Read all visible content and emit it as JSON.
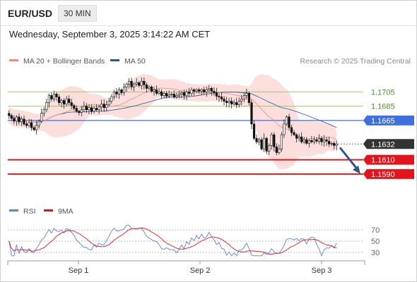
{
  "header": {
    "symbol": "EUR/USD",
    "timeframe": "30 MIN",
    "datetime": "Wednesday, September 3, 2025 3:14:22 AM CET"
  },
  "chart_data": {
    "type": "candlestick",
    "legend": [
      {
        "name": "MA 20 + Bollinger Bands",
        "color": "#f08a84"
      },
      {
        "name": "MA 50",
        "color": "#2f5597"
      }
    ],
    "attribution": "Research © 2025 Trading Central",
    "price_axis": {
      "min": 1.1575,
      "max": 1.1735
    },
    "x_labels": [
      "Sep 1",
      "Sep 2",
      "Sep 3"
    ],
    "current_price": {
      "value": 1.1632,
      "label": "1.1632",
      "color": "#333333"
    },
    "levels": [
      {
        "value": 1.1705,
        "label": "1.1705",
        "kind": "resistance",
        "color": "#9ec96e"
      },
      {
        "value": 1.1685,
        "label": "1.1685",
        "kind": "resistance",
        "color": "#9ec96e"
      },
      {
        "value": 1.1665,
        "label": "1.1665",
        "kind": "pivot",
        "color": "#3d6fe0"
      },
      {
        "value": 1.161,
        "label": "1.1610",
        "kind": "support",
        "color": "#e2141c"
      },
      {
        "value": 1.159,
        "label": "1.1590",
        "kind": "support",
        "color": "#e2141c"
      }
    ],
    "close_series": [
      1.1672,
      1.1668,
      1.1664,
      1.167,
      1.1663,
      1.1667,
      1.166,
      1.1658,
      1.1662,
      1.1655,
      1.1652,
      1.1658,
      1.1664,
      1.1675,
      1.168,
      1.169,
      1.17,
      1.1695,
      1.1702,
      1.1698,
      1.169,
      1.1693,
      1.1688,
      1.1695,
      1.169,
      1.1686,
      1.1682,
      1.1678,
      1.1676,
      1.168,
      1.1685,
      1.168,
      1.1683,
      1.1678,
      1.1682,
      1.168,
      1.1684,
      1.1688,
      1.1683,
      1.1687,
      1.1692,
      1.1698,
      1.1705,
      1.1702,
      1.1708,
      1.1704,
      1.1712,
      1.1716,
      1.172,
      1.1712,
      1.1716,
      1.1718,
      1.1714,
      1.172,
      1.1715,
      1.171,
      1.1712,
      1.1706,
      1.1708,
      1.1703,
      1.1705,
      1.17,
      1.1703,
      1.1699,
      1.1701,
      1.1702,
      1.1698,
      1.17,
      1.1702,
      1.1704,
      1.17,
      1.1705,
      1.1703,
      1.1708,
      1.1706,
      1.1708,
      1.1706,
      1.1708,
      1.1705,
      1.1708,
      1.171,
      1.1706,
      1.1704,
      1.1699,
      1.1698,
      1.1695,
      1.1692,
      1.169,
      1.1692,
      1.1688,
      1.169,
      1.1687,
      1.1692,
      1.1695,
      1.17,
      1.1703,
      1.169,
      1.166,
      1.164,
      1.1635,
      1.1638,
      1.1625,
      1.164,
      1.1622,
      1.163,
      1.1645,
      1.1628,
      1.162,
      1.1625,
      1.1645,
      1.166,
      1.167,
      1.1655,
      1.1648,
      1.1645,
      1.164,
      1.1642,
      1.1635,
      1.1638,
      1.1633,
      1.1637,
      1.1635,
      1.1638,
      1.1636,
      1.164,
      1.1635,
      1.1638,
      1.1636,
      1.1632,
      1.1633,
      1.163,
      1.1632
    ],
    "rsi": {
      "legend": [
        {
          "name": "RSI",
          "color": "#5b82d6"
        },
        {
          "name": "9MA",
          "color": "#e2141c"
        }
      ],
      "levels": [
        70,
        50,
        30
      ],
      "range": [
        20,
        80
      ]
    },
    "forecast_arrow": {
      "from_value": 1.163,
      "to_value": 1.159,
      "color": "#2f5597"
    }
  }
}
